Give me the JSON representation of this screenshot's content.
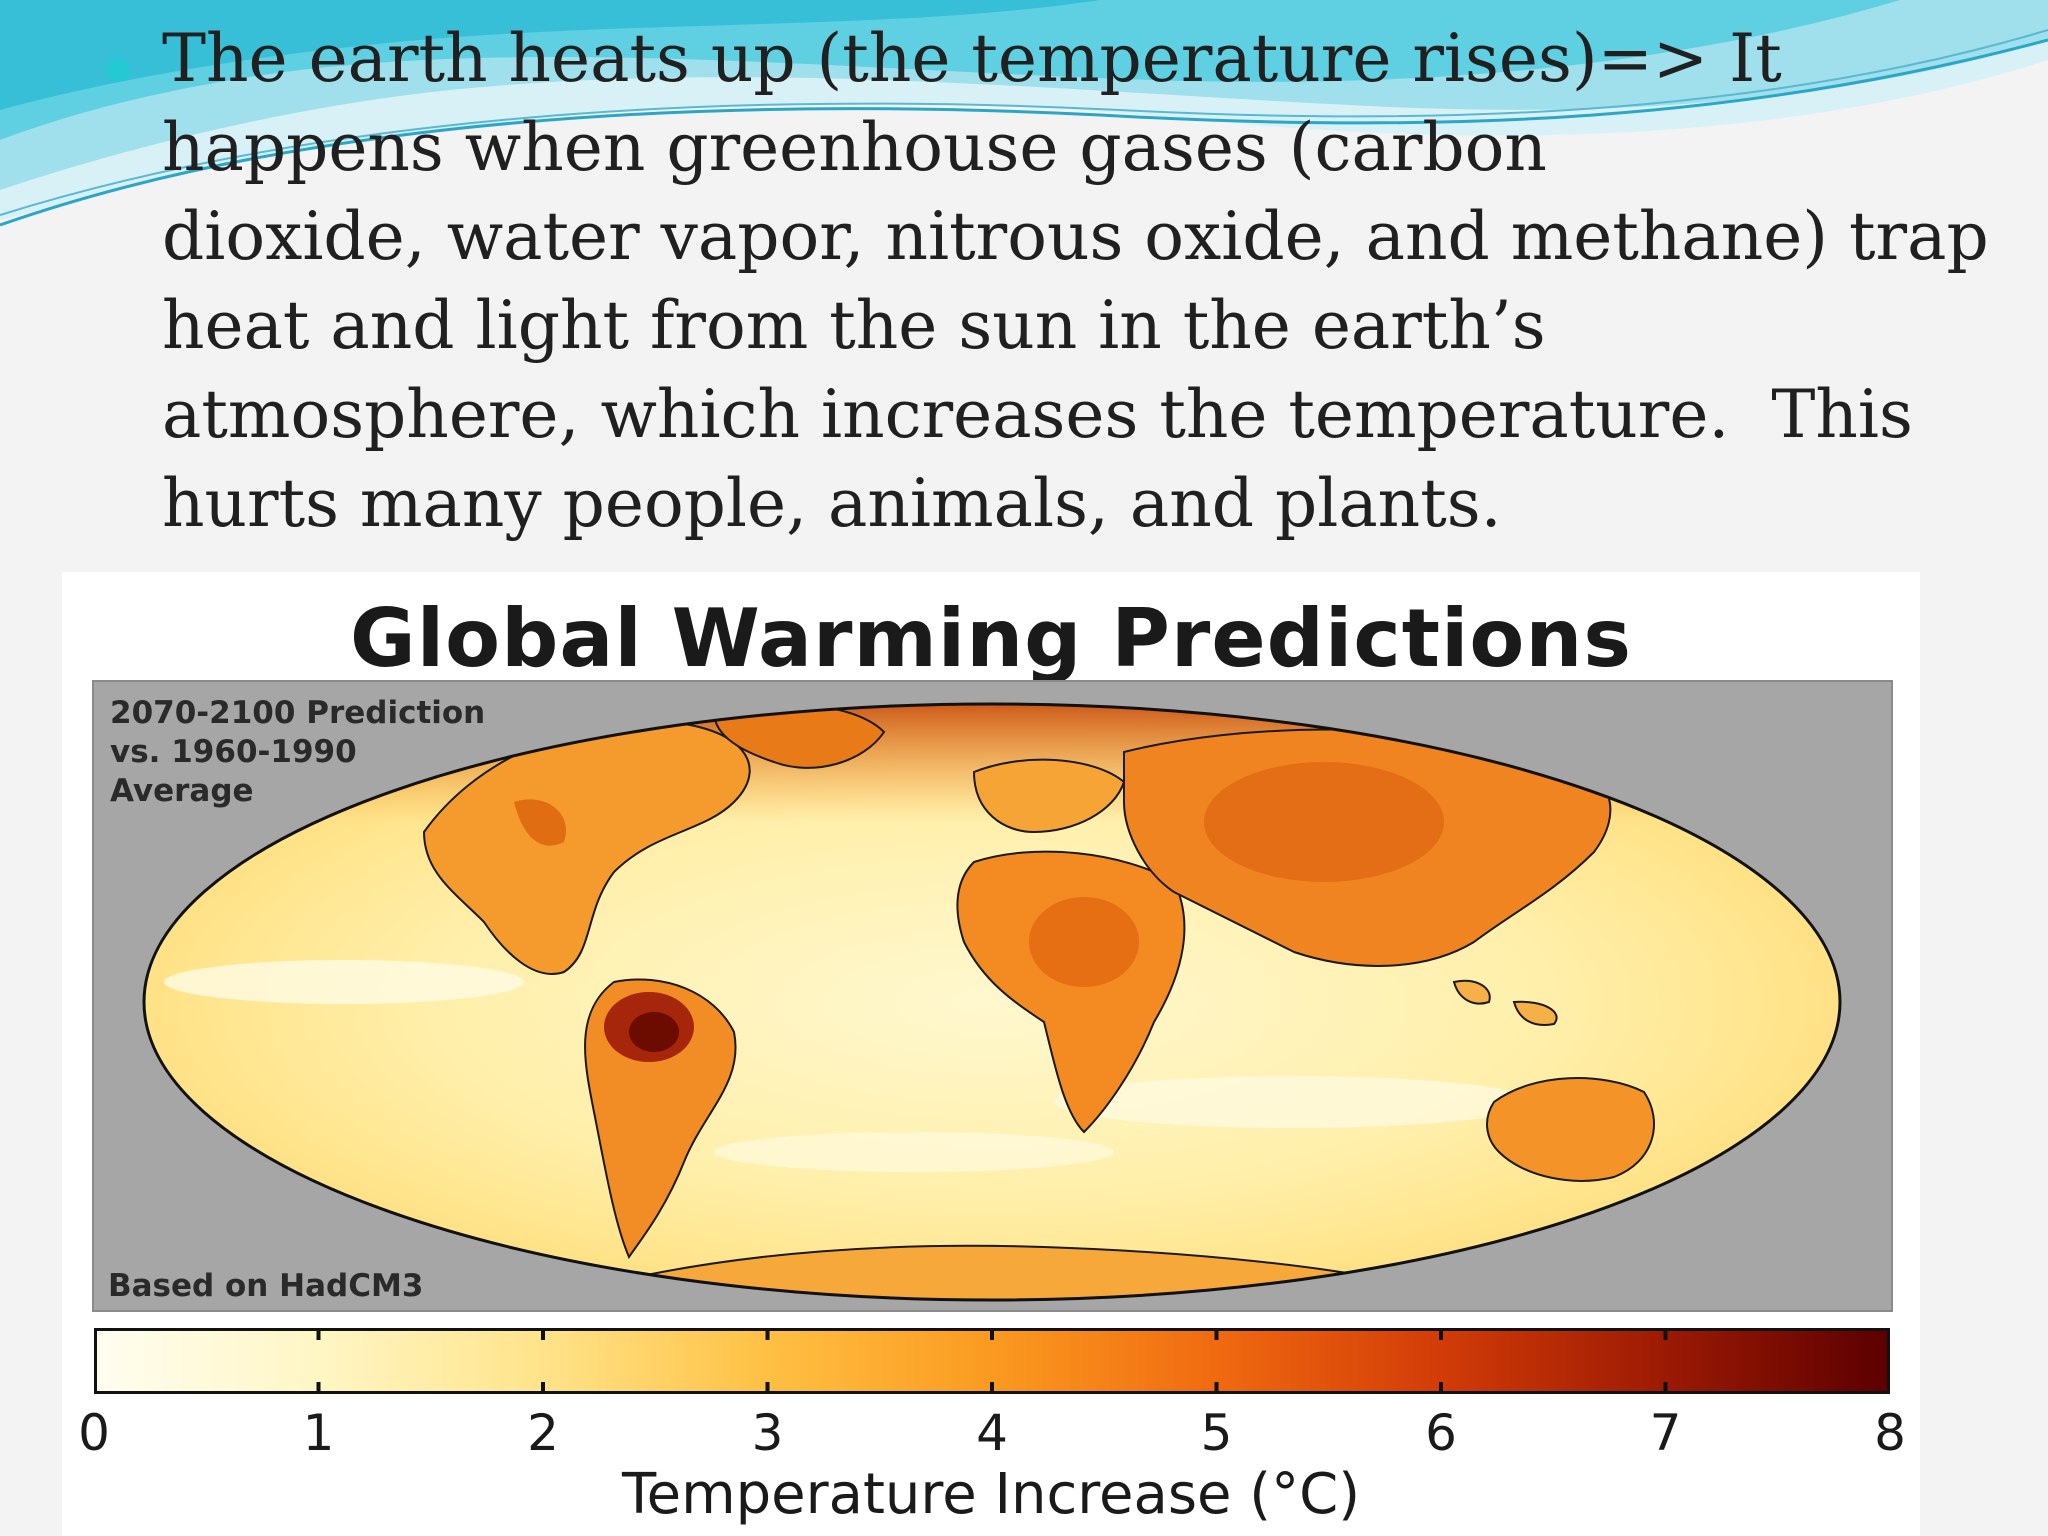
{
  "slide": {
    "bullet_lines": [
      "The earth heats up (the temperature rises)=> It",
      "happens when greenhouse gases (carbon",
      "dioxide, water vapor, nitrous oxide, and methane) trap",
      "heat and light from the sun in the earth’s",
      "atmosphere, which increases the temperature.  This",
      "hurts many people, animals, and plants."
    ],
    "colors": {
      "bullet": "#23c9d3",
      "wave_light": "#bfe9f3",
      "wave_mid": "#62cfe2",
      "wave_dark": "#2aa7c6"
    }
  },
  "figure": {
    "title": "Global Warming Predictions",
    "note_lines": [
      "2070-2100 Prediction",
      "vs. 1960-1990",
      "Average"
    ],
    "source": "Based on HadCM3",
    "projection": "Mollweide world map, warming shaded",
    "colorbar": {
      "label": "Temperature Increase (°C)",
      "min": 0,
      "max": 8,
      "ticks": [
        "0",
        "1",
        "2",
        "3",
        "4",
        "5",
        "6",
        "7",
        "8"
      ],
      "stops": [
        {
          "value": 0,
          "color": "#fffdf0"
        },
        {
          "value": 1,
          "color": "#fff6c4"
        },
        {
          "value": 2,
          "color": "#ffe38a"
        },
        {
          "value": 3,
          "color": "#ffc043"
        },
        {
          "value": 4,
          "color": "#fa9a20"
        },
        {
          "value": 5,
          "color": "#f06a10"
        },
        {
          "value": 6,
          "color": "#d23c08"
        },
        {
          "value": 7,
          "color": "#9c1a04"
        },
        {
          "value": 8,
          "color": "#5c0000"
        }
      ]
    }
  }
}
